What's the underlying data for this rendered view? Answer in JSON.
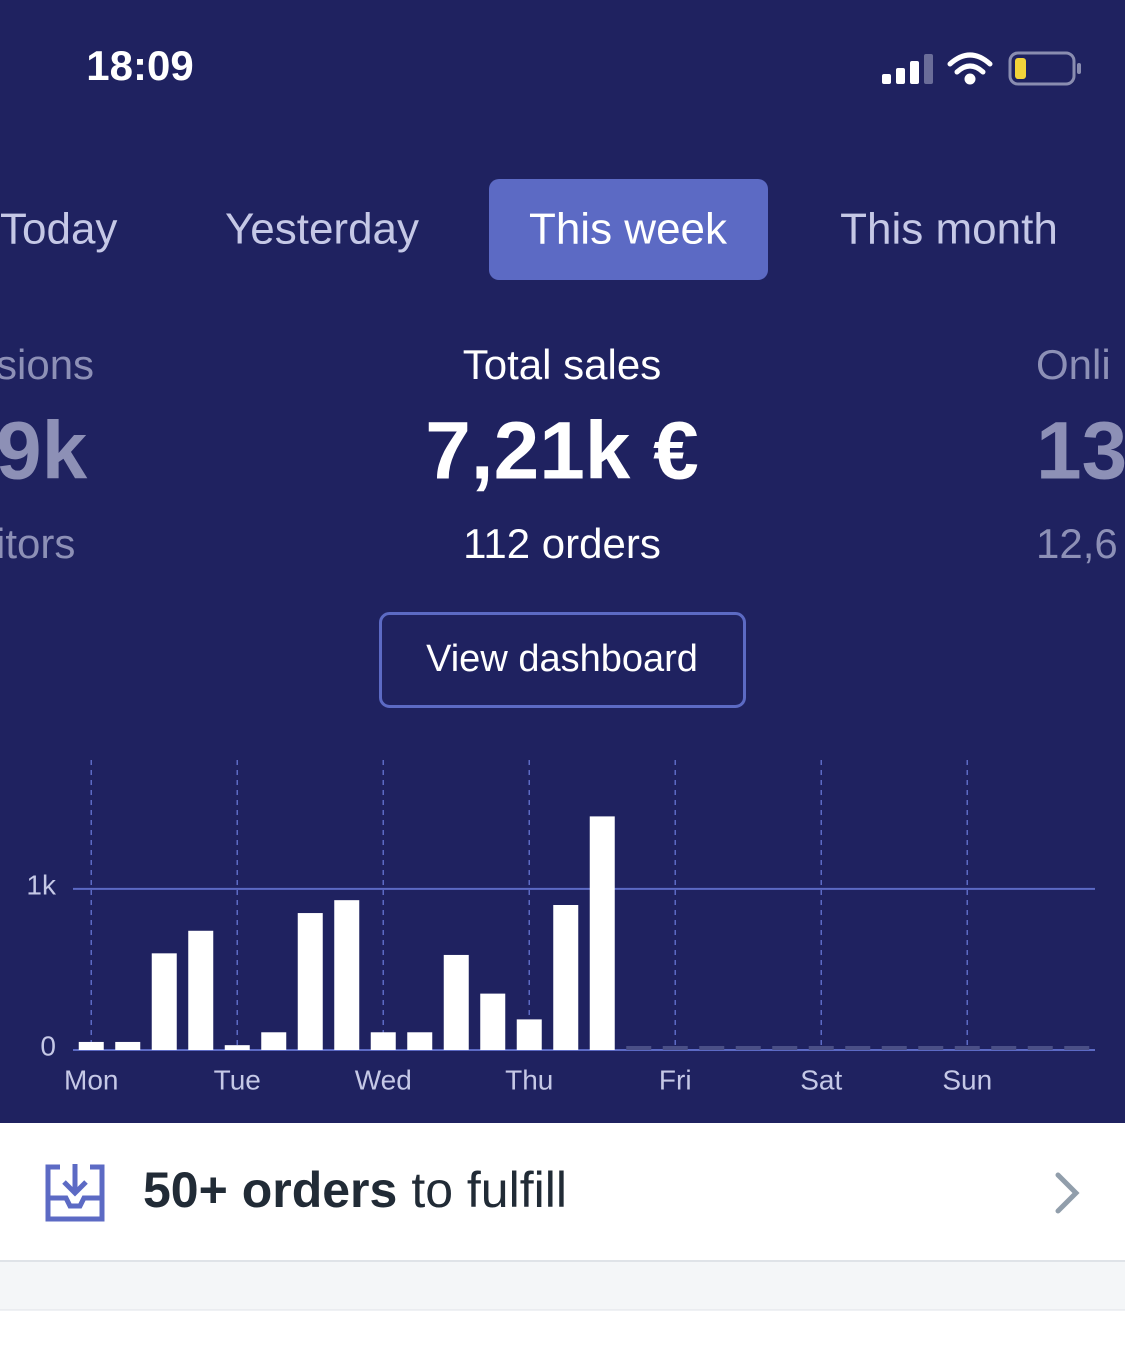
{
  "status_bar": {
    "time": "18:09"
  },
  "tabs": {
    "items": [
      "Today",
      "Yesterday",
      "This week",
      "This month"
    ],
    "active": 2
  },
  "stats": [
    {
      "title": "sions",
      "value": "9k",
      "subtitle": "itors"
    },
    {
      "title": "Total sales",
      "value": "7,21k €",
      "subtitle": "112 orders"
    },
    {
      "title": "Onli",
      "value": "13",
      "subtitle": "12,6"
    }
  ],
  "button": "View dashboard",
  "chart_data": {
    "type": "bar",
    "categories": [
      "Mon",
      null,
      null,
      null,
      "Tue",
      null,
      null,
      null,
      "Wed",
      null,
      null,
      null,
      "Thu",
      null,
      null,
      null,
      "Fri",
      null,
      null,
      null,
      "Sat",
      null,
      null,
      null,
      "Sun",
      null,
      null,
      null
    ],
    "values": [
      50,
      50,
      600,
      740,
      30,
      110,
      850,
      930,
      110,
      110,
      590,
      350,
      190,
      900,
      1450,
      null,
      null,
      null,
      null,
      null,
      null,
      null,
      null,
      null,
      null,
      null,
      null,
      null
    ],
    "color": "#ffffff",
    "ylim": [
      0,
      1800
    ],
    "yticks": [
      0,
      {
        "value": 1000,
        "label": "1k"
      }
    ],
    "grid": true
  },
  "fulfill": {
    "count": "50+ orders",
    "text": "to fulfill"
  }
}
